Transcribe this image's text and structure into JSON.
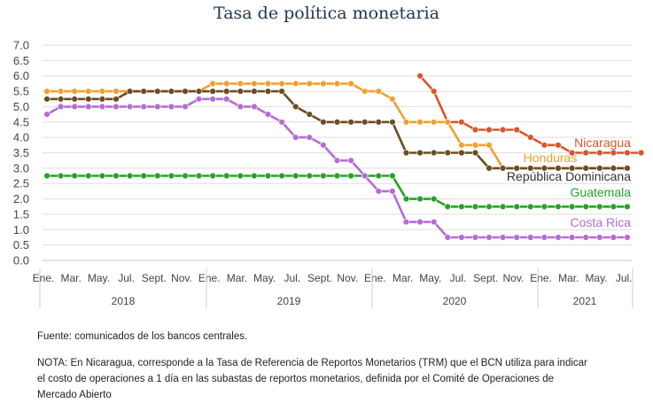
{
  "chart_data": {
    "type": "line",
    "title": "Tasa de política monetaria",
    "xlabel": "",
    "ylabel": "",
    "ylim": [
      0,
      7
    ],
    "y_ticks": [
      "0.0",
      "0.5",
      "1.0",
      "1.5",
      "2.0",
      "2.5",
      "3.0",
      "3.5",
      "4.0",
      "4.5",
      "5.0",
      "5.5",
      "6.0",
      "6.5",
      "7.0"
    ],
    "month_labels": [
      "Ene.",
      "Mar.",
      "May.",
      "Jul.",
      "Sept.",
      "Nov.",
      "Ene.",
      "Mar.",
      "May.",
      "Jul.",
      "Sept.",
      "Nov.",
      "Ene.",
      "Mar.",
      "May.",
      "Jul.",
      "Sept.",
      "Nov.",
      "Ene.",
      "Mar.",
      "May.",
      "Jul."
    ],
    "years": [
      "2018",
      "2019",
      "2020",
      "2021"
    ],
    "grid": true,
    "legend": "inline labels at right end",
    "series": [
      {
        "name": "Nicaragua",
        "color": "#d9552b",
        "start": 27,
        "values": [
          6.0,
          5.5,
          4.5,
          4.5,
          4.25,
          4.25,
          4.25,
          4.25,
          4.0,
          3.75,
          3.75,
          3.5,
          3.5,
          3.5,
          3.5,
          3.5,
          3.5
        ]
      },
      {
        "name": "Honduras",
        "color": "#f0a030",
        "start": 0,
        "values": [
          5.5,
          5.5,
          5.5,
          5.5,
          5.5,
          5.5,
          5.5,
          5.5,
          5.5,
          5.5,
          5.5,
          5.5,
          5.75,
          5.75,
          5.75,
          5.75,
          5.75,
          5.75,
          5.75,
          5.75,
          5.75,
          5.75,
          5.75,
          5.5,
          5.5,
          5.25,
          4.5,
          4.5,
          4.5,
          4.5,
          3.75,
          3.75,
          3.75,
          3.0,
          3.0,
          3.0,
          3.0,
          3.0,
          3.0,
          3.0,
          3.0,
          3.0,
          3.0
        ]
      },
      {
        "name": "República Dominicana",
        "color": "#6b4c22",
        "start": 0,
        "values": [
          5.25,
          5.25,
          5.25,
          5.25,
          5.25,
          5.25,
          5.5,
          5.5,
          5.5,
          5.5,
          5.5,
          5.5,
          5.5,
          5.5,
          5.5,
          5.5,
          5.5,
          5.5,
          5.0,
          4.75,
          4.5,
          4.5,
          4.5,
          4.5,
          4.5,
          4.5,
          3.5,
          3.5,
          3.5,
          3.5,
          3.5,
          3.5,
          3.0,
          3.0,
          3.0,
          3.0,
          3.0,
          3.0,
          3.0,
          3.0,
          3.0,
          3.0,
          3.0
        ]
      },
      {
        "name": "Guatemala",
        "color": "#27a227",
        "start": 0,
        "values": [
          2.75,
          2.75,
          2.75,
          2.75,
          2.75,
          2.75,
          2.75,
          2.75,
          2.75,
          2.75,
          2.75,
          2.75,
          2.75,
          2.75,
          2.75,
          2.75,
          2.75,
          2.75,
          2.75,
          2.75,
          2.75,
          2.75,
          2.75,
          2.75,
          2.75,
          2.75,
          2.0,
          2.0,
          2.0,
          1.75,
          1.75,
          1.75,
          1.75,
          1.75,
          1.75,
          1.75,
          1.75,
          1.75,
          1.75,
          1.75,
          1.75,
          1.75,
          1.75
        ]
      },
      {
        "name": "Costa Rica",
        "color": "#b66bd6",
        "start": 0,
        "values": [
          4.75,
          5.0,
          5.0,
          5.0,
          5.0,
          5.0,
          5.0,
          5.0,
          5.0,
          5.0,
          5.0,
          5.25,
          5.25,
          5.25,
          5.0,
          5.0,
          4.75,
          4.5,
          4.0,
          4.0,
          3.75,
          3.25,
          3.25,
          2.75,
          2.25,
          2.25,
          1.25,
          1.25,
          1.25,
          0.75,
          0.75,
          0.75,
          0.75,
          0.75,
          0.75,
          0.75,
          0.75,
          0.75,
          0.75,
          0.75,
          0.75,
          0.75,
          0.75
        ]
      }
    ]
  },
  "footer": {
    "source": "Fuente: comunicados de los bancos centrales.",
    "note_line1": "NOTA: En Nicaragua, corresponde a la Tasa de Referencia de Reportos Monetarios (TRM) que el BCN utiliza para indicar",
    "note_line2": "el costo de operaciones a 1 día en las subastas de reportos monetarios, definida por el Comité de Operaciones de",
    "note_line3": "Mercado Abierto"
  }
}
